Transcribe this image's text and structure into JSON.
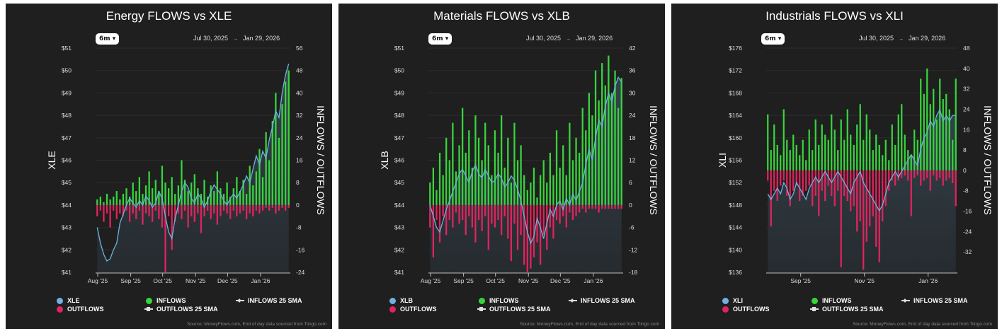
{
  "source_note": "Source: MoneyFlows.com, End of day data sourced from Tiingo.com",
  "legend_common": {
    "inflows": "INFLOWS",
    "outflows": "OUTFLOWS",
    "inflows_sma": "INFLOWS 25 SMA",
    "outflows_sma": "OUTFLOWS 25 SMA"
  },
  "colors": {
    "panel_bg": "#1f1f1f",
    "price": "#6db3e0",
    "inflows": "#38d43c",
    "outflows": "#e0245e",
    "area_top": "#34414b",
    "area_bottom": "#262b2f"
  },
  "chart_data": [
    {
      "type": "bar+line",
      "title": "Energy FLOWS vs XLE",
      "range_select": "6m",
      "date_from": "Jul 30, 2025",
      "date_to": "Jan 29, 2026",
      "ylabel_left": "XLE",
      "ylabel_right": "INFLOWS / OUTFLOWS",
      "series_names": {
        "price": "XLE"
      },
      "x_range": [
        "2025-07-30",
        "2026-01-29"
      ],
      "x_ticks": [
        {
          "label": "Aug '25",
          "date": "2025-08-01"
        },
        {
          "label": "Sep '25",
          "date": "2025-09-01"
        },
        {
          "label": "Oct '25",
          "date": "2025-10-01"
        },
        {
          "label": "Nov '25",
          "date": "2025-11-01"
        },
        {
          "label": "Dec '25",
          "date": "2025-12-01"
        },
        {
          "label": "Jan '26",
          "date": "2026-01-01"
        }
      ],
      "ylim_left": [
        41,
        51
      ],
      "yticks_left": [
        "$51",
        "$50",
        "$49",
        "$48",
        "$47",
        "$46",
        "$45",
        "$44",
        "$43",
        "$42",
        "$41"
      ],
      "ylim_right": [
        -24,
        56
      ],
      "yticks_right": [
        "56",
        "48",
        "40",
        "32",
        "24",
        "16",
        "8",
        "0",
        "-8",
        "-16",
        "-24"
      ],
      "price": [
        43.0,
        42.3,
        41.8,
        41.5,
        41.6,
        42.0,
        42.3,
        43.2,
        43.6,
        44.0,
        44.3,
        44.1,
        43.9,
        44.2,
        44.0,
        44.4,
        44.2,
        43.9,
        44.1,
        44.6,
        44.3,
        43.5,
        42.8,
        42.5,
        43.4,
        44.0,
        44.6,
        45.0,
        44.8,
        44.3,
        44.1,
        44.5,
        44.3,
        43.9,
        44.2,
        44.6,
        44.9,
        44.7,
        44.5,
        44.2,
        44.0,
        44.3,
        44.5,
        44.3,
        44.6,
        44.9,
        45.3,
        45.0,
        45.6,
        46.2,
        45.8,
        46.4,
        46.1,
        46.9,
        47.5,
        48.2,
        47.9,
        49.0,
        49.8,
        50.3
      ],
      "inflows": [
        2,
        3,
        1,
        4,
        2,
        3,
        5,
        2,
        4,
        6,
        3,
        8,
        5,
        10,
        4,
        7,
        12,
        6,
        9,
        5,
        14,
        8,
        6,
        10,
        4,
        7,
        16,
        9,
        5,
        8,
        11,
        6,
        4,
        9,
        3,
        7,
        5,
        12,
        6,
        4,
        8,
        3,
        6,
        10,
        5,
        9,
        4,
        14,
        7,
        12,
        20,
        10,
        26,
        16,
        30,
        40,
        24,
        36,
        44,
        48
      ],
      "outflows": [
        -4,
        -2,
        -6,
        -3,
        -8,
        -2,
        -5,
        -3,
        -4,
        -2,
        -6,
        -3,
        -5,
        -2,
        -7,
        -3,
        -4,
        -6,
        -2,
        -5,
        -8,
        -24,
        -4,
        -16,
        -6,
        -3,
        -5,
        -2,
        -8,
        -4,
        -6,
        -3,
        -10,
        -4,
        -2,
        -5,
        -3,
        -7,
        -4,
        -2,
        -3,
        -5,
        -2,
        -4,
        -3,
        -2,
        -5,
        -3,
        -4,
        -2,
        -3,
        -2,
        -1,
        -2,
        -1,
        -3,
        -2,
        -1,
        -2,
        -1
      ]
    },
    {
      "type": "bar+line",
      "title": "Materials FLOWS vs XLB",
      "range_select": "6m",
      "date_from": "Jul 30, 2025",
      "date_to": "Jan 29, 2026",
      "ylabel_left": "XLB",
      "ylabel_right": "INFLOWS / OUTFLOWS",
      "series_names": {
        "price": "XLB"
      },
      "x_range": [
        "2025-07-30",
        "2026-01-29"
      ],
      "x_ticks": [
        {
          "label": "Aug '25",
          "date": "2025-08-01"
        },
        {
          "label": "Sep '25",
          "date": "2025-09-01"
        },
        {
          "label": "Oct '25",
          "date": "2025-10-01"
        },
        {
          "label": "Nov '25",
          "date": "2025-11-01"
        },
        {
          "label": "Dec '25",
          "date": "2025-12-01"
        },
        {
          "label": "Jan '26",
          "date": "2026-01-01"
        }
      ],
      "ylim_left": [
        41,
        51
      ],
      "yticks_left": [
        "$51",
        "$50",
        "$49",
        "$48",
        "$47",
        "$46",
        "$45",
        "$44",
        "$43",
        "$42",
        "$41"
      ],
      "ylim_right": [
        -18,
        42
      ],
      "yticks_right": [
        "42",
        "36",
        "30",
        "24",
        "18",
        "12",
        "6",
        "0",
        "-6",
        "-12",
        "-18"
      ],
      "price": [
        44.0,
        43.5,
        43.0,
        42.8,
        43.3,
        43.8,
        44.2,
        44.6,
        45.0,
        45.4,
        45.6,
        45.3,
        45.0,
        45.5,
        45.8,
        45.4,
        45.2,
        45.6,
        45.3,
        45.0,
        45.1,
        45.4,
        45.2,
        44.8,
        45.0,
        45.3,
        45.1,
        44.7,
        44.2,
        43.5,
        42.8,
        42.3,
        42.6,
        43.4,
        43.0,
        42.5,
        43.2,
        43.8,
        43.5,
        44.0,
        44.2,
        43.8,
        44.3,
        44.0,
        44.5,
        44.2,
        44.6,
        45.0,
        45.8,
        46.5,
        46.0,
        47.0,
        47.8,
        47.5,
        48.4,
        49.0,
        48.6,
        49.3,
        49.7,
        49.5
      ],
      "inflows": [
        6,
        10,
        4,
        14,
        8,
        18,
        12,
        22,
        9,
        16,
        26,
        14,
        20,
        10,
        24,
        18,
        12,
        22,
        16,
        8,
        20,
        14,
        24,
        10,
        18,
        6,
        22,
        12,
        16,
        8,
        4,
        6,
        10,
        2,
        8,
        12,
        6,
        14,
        8,
        20,
        10,
        16,
        8,
        22,
        12,
        18,
        14,
        26,
        20,
        30,
        24,
        36,
        28,
        38,
        32,
        40,
        30,
        36,
        26,
        34
      ],
      "outflows": [
        -6,
        -14,
        -4,
        -10,
        -3,
        -8,
        -4,
        -6,
        -2,
        -5,
        -4,
        -8,
        -3,
        -6,
        -10,
        -4,
        -7,
        -3,
        -12,
        -5,
        -6,
        -4,
        -8,
        -3,
        -9,
        -15,
        -5,
        -12,
        -8,
        -16,
        -18,
        -17,
        -14,
        -10,
        -16,
        -8,
        -12,
        -6,
        -9,
        -4,
        -5,
        -3,
        -6,
        -2,
        -4,
        -3,
        -2,
        -1,
        -2,
        -1,
        -1,
        -1,
        -2,
        -1,
        -1,
        -1,
        -1,
        -1,
        -1,
        -1
      ]
    },
    {
      "type": "bar+line",
      "title": "Industrials FLOWS vs XLI",
      "range_select": "6m",
      "date_from": "Jul 30, 2025",
      "date_to": "Jan 29, 2026",
      "ylabel_left": "XLI",
      "ylabel_right": "INFLOWS / OUTFLOWS",
      "series_names": {
        "price": "XLI"
      },
      "x_range": [
        "2025-07-30",
        "2026-01-29"
      ],
      "x_ticks": [
        {
          "label": "Sep '25",
          "date": "2025-09-01"
        },
        {
          "label": "Nov '25",
          "date": "2025-11-01"
        },
        {
          "label": "Jan '26",
          "date": "2026-01-01"
        }
      ],
      "ylim_left": [
        136,
        176
      ],
      "yticks_left": [
        "$176",
        "$172",
        "$168",
        "$164",
        "$160",
        "$156",
        "$152",
        "$148",
        "$144",
        "$140",
        "$136"
      ],
      "ylim_right": [
        -40,
        48
      ],
      "yticks_right": [
        "48",
        "40",
        "32",
        "24",
        "16",
        "8",
        "0",
        "-8",
        "-16",
        "-24",
        "-32"
      ],
      "price": [
        150,
        149,
        150,
        151,
        150,
        152,
        151,
        149,
        150,
        152,
        151,
        150,
        149,
        151,
        152,
        153,
        152,
        153,
        154,
        153,
        152,
        153,
        154,
        153,
        152,
        151,
        150,
        152,
        153,
        154,
        152,
        151,
        150,
        149,
        148,
        147,
        148,
        150,
        152,
        153,
        154,
        153,
        154,
        155,
        156,
        157,
        156,
        155,
        158,
        160,
        161,
        163,
        162,
        164,
        165,
        163,
        164,
        163,
        164,
        164
      ],
      "inflows": [
        22,
        8,
        18,
        10,
        6,
        24,
        12,
        8,
        14,
        10,
        6,
        12,
        4,
        16,
        8,
        20,
        10,
        18,
        14,
        12,
        22,
        16,
        8,
        20,
        12,
        24,
        14,
        10,
        18,
        26,
        12,
        22,
        16,
        8,
        14,
        10,
        6,
        12,
        4,
        18,
        10,
        22,
        26,
        14,
        8,
        6,
        16,
        12,
        36,
        30,
        40,
        26,
        32,
        20,
        36,
        28,
        30,
        24,
        12,
        36
      ],
      "outflows": [
        -4,
        -22,
        -8,
        -12,
        -6,
        -4,
        -10,
        -14,
        -8,
        -6,
        -12,
        -10,
        -8,
        -6,
        -14,
        -10,
        -18,
        -8,
        -12,
        -6,
        -10,
        -14,
        -8,
        -38,
        -10,
        -12,
        -16,
        -14,
        -24,
        -20,
        -39,
        -28,
        -22,
        -18,
        -30,
        -36,
        -20,
        -14,
        -8,
        -4,
        -6,
        -4,
        -3,
        -2,
        -4,
        -18,
        -3,
        -2,
        -6,
        -4,
        -3,
        -8,
        -2,
        -4,
        -3,
        -6,
        -4,
        -3,
        -5,
        -14
      ]
    }
  ]
}
